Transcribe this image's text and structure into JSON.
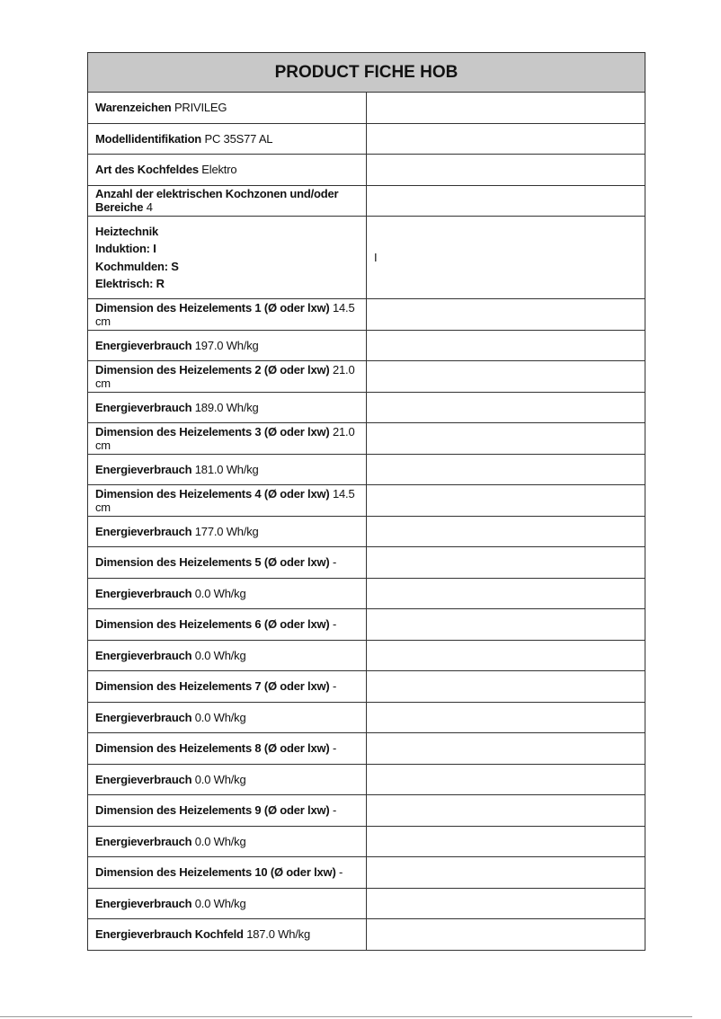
{
  "title": "PRODUCT FICHE HOB",
  "rows_top": [
    {
      "label": "Warenzeichen",
      "value": "PRIVILEG",
      "right": ""
    },
    {
      "label": "Modellidentifikation",
      "value": "PC 35S77 AL",
      "right": ""
    },
    {
      "label": "Art des Kochfeldes",
      "value": "Elektro",
      "right": ""
    },
    {
      "label": "Anzahl der elektrischen Kochzonen und/oder Bereiche",
      "value": "4",
      "right": ""
    }
  ],
  "heating": {
    "lines": [
      "Heiztechnik",
      "Induktion: I",
      "Kochmulden: S",
      "Elektrisch: R"
    ],
    "right": "I"
  },
  "rows_bottom": [
    {
      "label": "Dimension des Heizelements 1 (Ø oder lxw)",
      "value": "14.5 cm",
      "right": ""
    },
    {
      "label": "Energieverbrauch",
      "value": "197.0 Wh/kg",
      "right": ""
    },
    {
      "label": "Dimension des Heizelements 2 (Ø oder lxw)",
      "value": "21.0 cm",
      "right": ""
    },
    {
      "label": "Energieverbrauch",
      "value": "189.0 Wh/kg",
      "right": ""
    },
    {
      "label": "Dimension des Heizelements 3 (Ø oder lxw)",
      "value": "21.0 cm",
      "right": ""
    },
    {
      "label": "Energieverbrauch",
      "value": "181.0 Wh/kg",
      "right": ""
    },
    {
      "label": "Dimension des Heizelements 4 (Ø oder lxw)",
      "value": "14.5 cm",
      "right": ""
    },
    {
      "label": "Energieverbrauch",
      "value": "177.0 Wh/kg",
      "right": ""
    },
    {
      "label": "Dimension des Heizelements 5 (Ø oder lxw)",
      "value": "-",
      "right": ""
    },
    {
      "label": "Energieverbrauch",
      "value": "0.0 Wh/kg",
      "right": ""
    },
    {
      "label": "Dimension des Heizelements 6 (Ø oder lxw)",
      "value": "-",
      "right": ""
    },
    {
      "label": "Energieverbrauch",
      "value": "0.0 Wh/kg",
      "right": ""
    },
    {
      "label": "Dimension des Heizelements 7 (Ø oder lxw)",
      "value": "-",
      "right": ""
    },
    {
      "label": "Energieverbrauch",
      "value": "0.0 Wh/kg",
      "right": ""
    },
    {
      "label": "Dimension des Heizelements 8 (Ø oder lxw)",
      "value": "-",
      "right": ""
    },
    {
      "label": "Energieverbrauch",
      "value": "0.0 Wh/kg",
      "right": ""
    },
    {
      "label": "Dimension des Heizelements 9 (Ø oder lxw)",
      "value": "-",
      "right": ""
    },
    {
      "label": "Energieverbrauch",
      "value": "0.0 Wh/kg",
      "right": ""
    },
    {
      "label": "Dimension des Heizelements 10 (Ø oder lxw)",
      "value": "-",
      "right": ""
    },
    {
      "label": "Energieverbrauch",
      "value": "0.0 Wh/kg",
      "right": ""
    },
    {
      "label": "Energieverbrauch Kochfeld",
      "value": "187.0 Wh/kg",
      "right": ""
    }
  ]
}
